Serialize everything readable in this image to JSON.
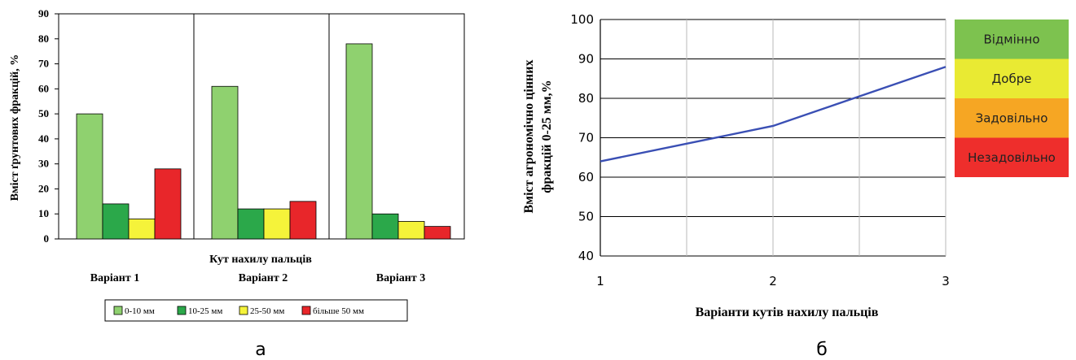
{
  "chart_data": [
    {
      "type": "bar",
      "ylabel": "Вміст ґрунтових фракцій, %",
      "xlabel": "Кут нахилу пальців",
      "ylim": [
        0,
        90
      ],
      "yticks": [
        0,
        10,
        20,
        30,
        40,
        50,
        60,
        70,
        80,
        90
      ],
      "categories": [
        "Варіант 1",
        "Варіант 2",
        "Варіант 3"
      ],
      "series": [
        {
          "name": "0-10 мм",
          "color": "#8FD16F",
          "values": [
            50,
            61,
            78
          ]
        },
        {
          "name": "10-25 мм",
          "color": "#2BA84A",
          "values": [
            14,
            12,
            10
          ]
        },
        {
          "name": "25-50 мм",
          "color": "#F5F33A",
          "values": [
            8,
            12,
            7
          ]
        },
        {
          "name": "більше 50 мм",
          "color": "#E8262A",
          "values": [
            28,
            15,
            5
          ]
        }
      ],
      "grid": "vertical category separators",
      "legend": "bottom",
      "caption": "а"
    },
    {
      "type": "line",
      "ylabel_line1": "Вміст агрономічно цінних",
      "ylabel_line2": "фракцій 0-25 мм,%",
      "xlabel": "Варіанти кутів нахилу пальців",
      "ylim": [
        40,
        100
      ],
      "yticks": [
        40,
        50,
        60,
        70,
        80,
        90,
        100
      ],
      "xticks": [
        1,
        2,
        3
      ],
      "series": [
        {
          "color": "#3A4FB4",
          "x": [
            1,
            2,
            3
          ],
          "y": [
            64,
            73,
            88
          ]
        }
      ],
      "grid": true,
      "zones": [
        {
          "label": "Відмінно",
          "color": "#7DC24F",
          "from": 90,
          "to": 100
        },
        {
          "label": "Добре",
          "color": "#E9EA33",
          "from": 80,
          "to": 90
        },
        {
          "label": "Задовільно",
          "color": "#F6A623",
          "from": 70,
          "to": 80
        },
        {
          "label": "Незадовільно",
          "color": "#EE2E2C",
          "from": 60,
          "to": 70
        }
      ],
      "caption": "б"
    }
  ]
}
